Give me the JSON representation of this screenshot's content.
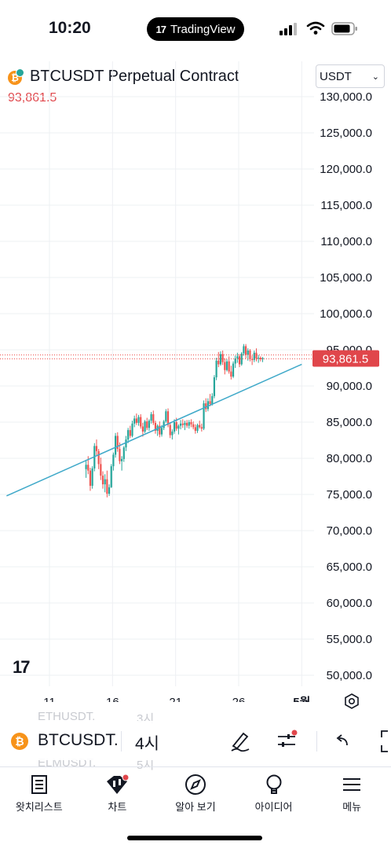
{
  "status_bar": {
    "time": "10:20",
    "app_pill": "TradingView",
    "app_pill_logo": "17"
  },
  "header": {
    "symbol_title": "BTCUSDT Perpetual Contract",
    "last_price": "93,861.5",
    "currency": "USDT"
  },
  "chart_data": {
    "type": "candlestick",
    "y_ticks": [
      "130,000.0",
      "125,000.0",
      "120,000.0",
      "115,000.0",
      "110,000.0",
      "105,000.0",
      "100,000.0",
      "95,000.0",
      "90,000.0",
      "85,000.0",
      "80,000.0",
      "75,000.0",
      "70,000.0",
      "65,000.0",
      "60,000.0",
      "55,000.0",
      "50,000.0"
    ],
    "x_ticks": [
      "11",
      "16",
      "21",
      "26",
      "5월"
    ],
    "ylim": [
      50000,
      130000
    ],
    "price_label": "93,861.5",
    "trendline": [
      [
        7.6,
        74800
      ],
      [
        31.0,
        93000
      ]
    ],
    "colors": {
      "up": "#26a69a",
      "down": "#ef5350",
      "trendline": "#3fa9c9",
      "price_line": "#ef5350"
    },
    "ohlc": [
      [
        78500,
        79800,
        77300,
        79100
      ],
      [
        79100,
        80300,
        77800,
        78300
      ],
      [
        78300,
        78700,
        75500,
        76200
      ],
      [
        76200,
        78900,
        75800,
        78600
      ],
      [
        78600,
        82100,
        78200,
        81700
      ],
      [
        81700,
        82600,
        80400,
        81000
      ],
      [
        81000,
        81300,
        78500,
        79200
      ],
      [
        79200,
        80100,
        77000,
        77600
      ],
      [
        77600,
        78200,
        75800,
        76400
      ],
      [
        76400,
        77800,
        75300,
        77100
      ],
      [
        77100,
        78300,
        74600,
        75100
      ],
      [
        75100,
        76400,
        74800,
        76000
      ],
      [
        76000,
        79200,
        75900,
        78900
      ],
      [
        78900,
        80800,
        78300,
        80500
      ],
      [
        80500,
        83500,
        80100,
        83100
      ],
      [
        83100,
        83600,
        80900,
        81300
      ],
      [
        81300,
        82200,
        79200,
        79600
      ],
      [
        79600,
        80300,
        78300,
        79900
      ],
      [
        79900,
        81700,
        79500,
        81500
      ],
      [
        81500,
        83100,
        81000,
        82600
      ],
      [
        82600,
        84200,
        82100,
        83900
      ],
      [
        83900,
        84500,
        82800,
        83100
      ],
      [
        83100,
        85200,
        82900,
        84800
      ],
      [
        84800,
        85900,
        84300,
        85500
      ],
      [
        85500,
        86200,
        84600,
        84900
      ],
      [
        84900,
        86000,
        84500,
        85700
      ],
      [
        85700,
        86100,
        84100,
        84400
      ],
      [
        84400,
        84900,
        83000,
        83700
      ],
      [
        83700,
        85300,
        83500,
        85100
      ],
      [
        85100,
        85600,
        83900,
        84200
      ],
      [
        84200,
        85400,
        83800,
        85200
      ],
      [
        85200,
        86400,
        84800,
        86100
      ],
      [
        86100,
        86600,
        84600,
        84900
      ],
      [
        84900,
        85200,
        83400,
        83800
      ],
      [
        83800,
        84700,
        83100,
        84500
      ],
      [
        84500,
        85100,
        82900,
        83300
      ],
      [
        83300,
        84600,
        83000,
        84200
      ],
      [
        84200,
        85300,
        83900,
        85100
      ],
      [
        85100,
        86800,
        84900,
        86500
      ],
      [
        86500,
        86900,
        84300,
        84600
      ],
      [
        84600,
        85000,
        82800,
        83200
      ],
      [
        83200,
        84000,
        82600,
        83700
      ],
      [
        83700,
        85400,
        83400,
        85000
      ],
      [
        85000,
        85600,
        83800,
        84100
      ],
      [
        84100,
        84700,
        83300,
        84500
      ],
      [
        84500,
        85300,
        84000,
        84800
      ],
      [
        84800,
        85400,
        84200,
        84600
      ],
      [
        84600,
        85200,
        83900,
        84900
      ],
      [
        84900,
        85300,
        84200,
        84500
      ],
      [
        84500,
        85300,
        84100,
        85000
      ],
      [
        85000,
        85400,
        84300,
        84700
      ],
      [
        84700,
        85100,
        84000,
        84300
      ],
      [
        84300,
        84700,
        83400,
        83800
      ],
      [
        83800,
        84800,
        83500,
        84600
      ],
      [
        84600,
        85200,
        84100,
        84300
      ],
      [
        84300,
        84800,
        83700,
        84100
      ],
      [
        84100,
        88000,
        83900,
        87600
      ],
      [
        87600,
        88300,
        86400,
        86800
      ],
      [
        86800,
        88300,
        86500,
        87900
      ],
      [
        87900,
        88900,
        87200,
        87500
      ],
      [
        87500,
        89000,
        87300,
        88600
      ],
      [
        88600,
        91500,
        88300,
        91200
      ],
      [
        91200,
        93900,
        90800,
        93500
      ],
      [
        93500,
        94700,
        92600,
        93000
      ],
      [
        93000,
        94800,
        92800,
        94400
      ],
      [
        94400,
        94900,
        92900,
        93300
      ],
      [
        93300,
        93800,
        91600,
        92200
      ],
      [
        92200,
        93700,
        92000,
        93400
      ],
      [
        93400,
        94100,
        91700,
        92000
      ],
      [
        92000,
        92800,
        90900,
        91300
      ],
      [
        91300,
        93400,
        91100,
        93100
      ],
      [
        93100,
        94200,
        92500,
        93800
      ],
      [
        93800,
        94600,
        93200,
        94100
      ],
      [
        94100,
        94400,
        92600,
        93000
      ],
      [
        93000,
        94700,
        92800,
        94500
      ],
      [
        94500,
        95800,
        94200,
        95500
      ],
      [
        95500,
        95800,
        93800,
        94300
      ],
      [
        94300,
        95200,
        93500,
        94900
      ],
      [
        94900,
        95100,
        93400,
        93700
      ],
      [
        93700,
        94200,
        92900,
        93600
      ],
      [
        93600,
        94900,
        93300,
        94600
      ],
      [
        94600,
        95200,
        93400,
        93800
      ],
      [
        93800,
        94300,
        93200,
        93900
      ],
      [
        93900,
        94100,
        93400,
        93700
      ],
      [
        93700,
        94000,
        93300,
        93861.5
      ]
    ]
  },
  "toolbar": {
    "symbol": "BTCUSDT.",
    "interval": "4시",
    "ghost_prev_symbol": "ETHUSDT.",
    "ghost_prev_interval": "3시",
    "ghost_next_symbol": "ELMUSDT.",
    "ghost_next_interval": "5시"
  },
  "nav": {
    "items": [
      {
        "label": "왓치리스트",
        "icon": "watchlist-icon"
      },
      {
        "label": "차트",
        "icon": "chart-icon"
      },
      {
        "label": "알아 보기",
        "icon": "compass-icon"
      },
      {
        "label": "아이디어",
        "icon": "lightbulb-icon"
      },
      {
        "label": "메뉴",
        "icon": "menu-icon"
      }
    ]
  }
}
